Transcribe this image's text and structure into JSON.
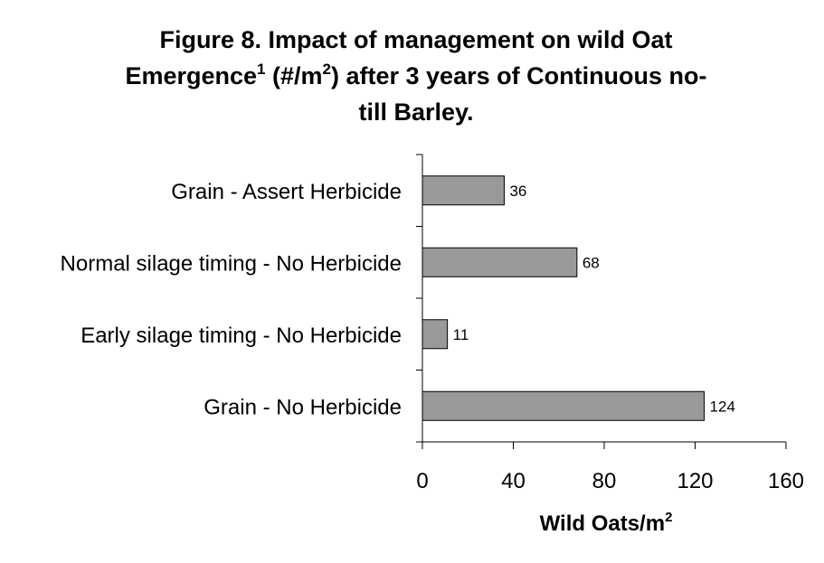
{
  "chart_data": {
    "type": "bar",
    "orientation": "horizontal",
    "title": {
      "line1": "Figure 8. Impact of management on wild Oat",
      "line2_a": "Emergence",
      "line2_sup1": "1",
      "line2_b": " (#/m",
      "line2_sup2": "2",
      "line2_c": ") after 3 years of Continuous no-",
      "line3": "till Barley."
    },
    "categories": [
      "Grain - Assert Herbicide",
      "Normal silage timing - No Herbicide",
      "Early silage timing - No Herbicide",
      "Grain - No Herbicide"
    ],
    "values": [
      36,
      68,
      11,
      124
    ],
    "data_labels": [
      "36",
      "68",
      "11",
      "124"
    ],
    "xlabel": {
      "text": "Wild Oats/m",
      "sup": "2"
    },
    "ylabel": "",
    "xlim": [
      0,
      160
    ],
    "x_ticks": [
      0,
      40,
      80,
      120,
      160
    ],
    "x_tick_labels": [
      "0",
      "40",
      "80",
      "120",
      "160"
    ],
    "grid": false,
    "legend": "none",
    "bar_color": "#999999",
    "bar_edge_color": "#000000"
  }
}
